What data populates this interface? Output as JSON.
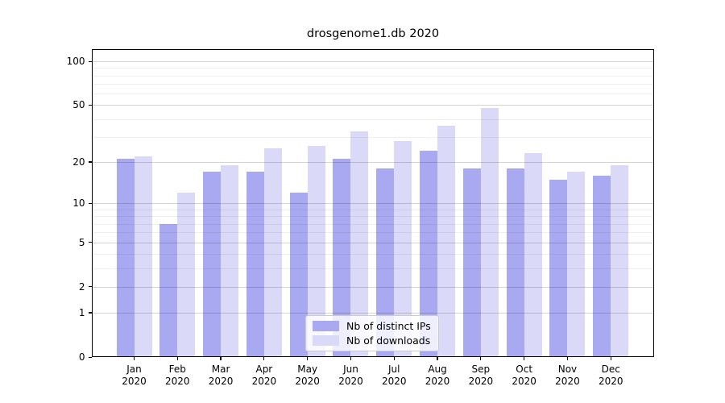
{
  "title": "drosgenome1.db 2020",
  "chart_data": {
    "type": "bar",
    "title": "drosgenome1.db 2020",
    "categories": [
      "Jan 2020",
      "Feb 2020",
      "Mar 2020",
      "Apr 2020",
      "May 2020",
      "Jun 2020",
      "Jul 2020",
      "Aug 2020",
      "Sep 2020",
      "Oct 2020",
      "Nov 2020",
      "Dec 2020"
    ],
    "series": [
      {
        "name": "Nb of distinct IPs",
        "color": "#a9a9f1",
        "values": [
          21,
          7,
          17,
          17,
          12,
          21,
          18,
          24,
          18,
          18,
          15,
          16
        ]
      },
      {
        "name": "Nb of downloads",
        "color": "#dadaf8",
        "values": [
          22,
          12,
          19,
          25,
          26,
          33,
          28,
          36,
          48,
          23,
          17,
          19
        ]
      }
    ],
    "xlabel": "",
    "ylabel": "",
    "yscale": "log1p",
    "ylim": [
      0,
      121
    ],
    "yticks": [
      100,
      50,
      20,
      10,
      5,
      2,
      1,
      0
    ],
    "minor_yticks": [
      3,
      4,
      6,
      7,
      8,
      9,
      30,
      40,
      60,
      70,
      80,
      90
    ],
    "grid": "horizontal",
    "legend_position": "lower-center"
  },
  "colors": {
    "background": "#ffffff",
    "bar_dark": "#a9a9f1",
    "bar_light": "#dadaf8",
    "axis": "#000000",
    "legend_border": "#cccccc"
  }
}
